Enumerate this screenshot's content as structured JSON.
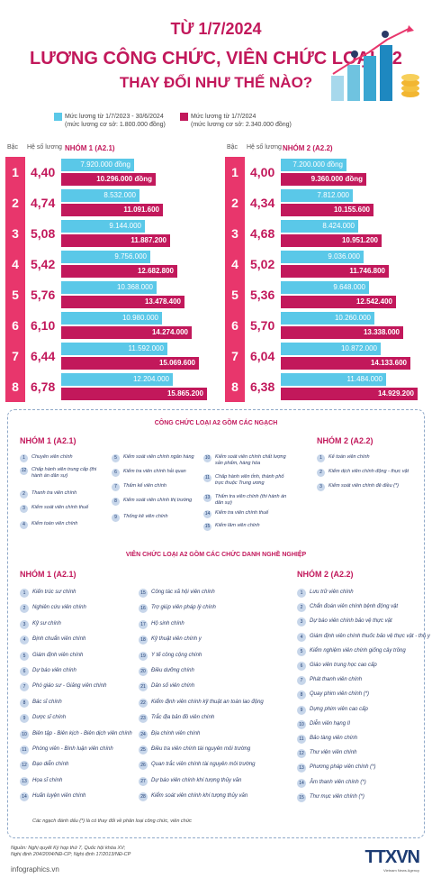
{
  "header": {
    "date": "TỪ 1/7/2024",
    "title": "LƯƠNG CÔNG CHỨC, VIÊN CHỨC LOẠI A2",
    "subtitle": "THAY ĐỔI NHƯ THẾ NÀO?"
  },
  "legend": {
    "old_line1": "Mức lương từ 1/7/2023 - 30/6/2024",
    "old_line2": "(mức lương cơ sở: 1.800.000 đồng)",
    "new_line1": "Mức lương từ 1/7/2024",
    "new_line2": "(mức lương cơ sở: 2.340.000 đồng)"
  },
  "colors": {
    "old": "#5ac8e8",
    "new": "#c2185b",
    "rank": "#e8366c"
  },
  "groups": [
    {
      "col_rank": "Bậc",
      "col_coef": "Hệ số lương",
      "title": "NHÓM 1 (A2.1)",
      "rows": [
        {
          "rank": "1",
          "coef": "4,40",
          "old": "7.920.000 đồng",
          "new": "10.296.000 đồng",
          "old_v": 7920000,
          "new_v": 10296000
        },
        {
          "rank": "2",
          "coef": "4,74",
          "old": "8.532.000",
          "new": "11.091.600",
          "old_v": 8532000,
          "new_v": 11091600
        },
        {
          "rank": "3",
          "coef": "5,08",
          "old": "9.144.000",
          "new": "11.887.200",
          "old_v": 9144000,
          "new_v": 11887200
        },
        {
          "rank": "4",
          "coef": "5,42",
          "old": "9.756.000",
          "new": "12.682.800",
          "old_v": 9756000,
          "new_v": 12682800
        },
        {
          "rank": "5",
          "coef": "5,76",
          "old": "10.368.000",
          "new": "13.478.400",
          "old_v": 10368000,
          "new_v": 13478400
        },
        {
          "rank": "6",
          "coef": "6,10",
          "old": "10.980.000",
          "new": "14.274.000",
          "old_v": 10980000,
          "new_v": 14274000
        },
        {
          "rank": "7",
          "coef": "6,44",
          "old": "11.592.000",
          "new": "15.069.600",
          "old_v": 11592000,
          "new_v": 15069600
        },
        {
          "rank": "8",
          "coef": "6,78",
          "old": "12.204.000",
          "new": "15.865.200",
          "old_v": 12204000,
          "new_v": 15865200
        }
      ]
    },
    {
      "col_rank": "Bậc",
      "col_coef": "Hệ số lương",
      "title": "NHÓM 2 (A2.2)",
      "rows": [
        {
          "rank": "1",
          "coef": "4,00",
          "old": "7.200.000 đồng",
          "new": "9.360.000 đồng",
          "old_v": 7200000,
          "new_v": 9360000
        },
        {
          "rank": "2",
          "coef": "4,34",
          "old": "7.812.000",
          "new": "10.155.600",
          "old_v": 7812000,
          "new_v": 10155600
        },
        {
          "rank": "3",
          "coef": "4,68",
          "old": "8.424.000",
          "new": "10.951.200",
          "old_v": 8424000,
          "new_v": 10951200
        },
        {
          "rank": "4",
          "coef": "5,02",
          "old": "9.036.000",
          "new": "11.746.800",
          "old_v": 9036000,
          "new_v": 11746800
        },
        {
          "rank": "5",
          "coef": "5,36",
          "old": "9.648.000",
          "new": "12.542.400",
          "old_v": 9648000,
          "new_v": 12542400
        },
        {
          "rank": "6",
          "coef": "5,70",
          "old": "10.260.000",
          "new": "13.338.000",
          "old_v": 10260000,
          "new_v": 13338000
        },
        {
          "rank": "7",
          "coef": "6,04",
          "old": "10.872.000",
          "new": "14.133.600",
          "old_v": 10872000,
          "new_v": 14133600
        },
        {
          "rank": "8",
          "coef": "6,38",
          "old": "11.484.000",
          "new": "14.929.200",
          "old_v": 11484000,
          "new_v": 14929200
        }
      ]
    }
  ],
  "civil": {
    "title": "CÔNG CHỨC LOẠI A2 GỒM CÁC NGẠCH",
    "g1_title": "NHÓM 1 (A2.1)",
    "g2_title": "NHÓM 2 (A2.2)",
    "g1": [
      "Chuyên viên chính",
      "Chấp hành viên trung cấp (thi hành án dân sự)",
      "Thanh tra viên chính",
      "Kiểm soát viên chính thuế",
      "Kiểm toán viên chính",
      "Kiểm soát viên chính ngân hàng",
      "Kiểm tra viên chính hải quan",
      "Thẩm kế viên chính",
      "Kiểm soát viên chính thị trường",
      "Thống kê viên chính",
      "Kiểm soát viên chính chất lượng sản phẩm, hàng hóa",
      "Chấp hành viên tỉnh, thành phố trực thuộc Trung ương",
      "Thẩm tra viên chính (thi hành án dân sự)",
      "Kiểm tra viên chính thuế",
      "Kiểm lâm viên chính"
    ],
    "g2": [
      "Kế toán viên chính",
      "Kiểm dịch viên chính động - thực vật",
      "Kiểm soát viên chính đê điều (*)"
    ]
  },
  "public": {
    "title": "VIÊN CHỨC LOẠI A2 GỒM CÁC CHỨC DANH NGHỀ NGHIỆP",
    "g1_title": "NHÓM 1 (A2.1)",
    "g2_title": "NHÓM 2 (A2.2)",
    "g1a": [
      "Kiến trúc sư chính",
      "Nghiên cứu viên chính",
      "Kỹ sư chính",
      "Định chuẩn viên chính",
      "Giám định viên chính",
      "Dự báo viên chính",
      "Phó giáo sư - Giảng viên chính",
      "Bác sĩ chính",
      "Dược sĩ chính",
      "Biên tập - Biên kịch - Biên dịch viên chính",
      "Phóng viên - Bình luận viên chính",
      "Đạo diễn chính",
      "Họa sĩ chính",
      "Huấn luyện viên chính"
    ],
    "g1b": [
      "Công tác xã hội viên chính",
      "Trợ giúp viên pháp lý chính",
      "Hộ sinh chính",
      "Kỹ thuật viên chính y",
      "Y tế công cộng chính",
      "Điều dưỡng chính",
      "Dân số viên chính",
      "Kiểm định viên chính kỹ thuật an toàn lao động",
      "Trắc địa bản đồ viên chính",
      "Địa chính viên chính",
      "Điều tra viên chính tài nguyên môi trường",
      "Quan trắc viên chính tài nguyên môi trường",
      "Dự báo viên chính khí tượng thủy văn",
      "Kiểm soát viên chính khí tượng thủy văn"
    ],
    "g2": [
      "Lưu trữ viên chính",
      "Chẩn đoán viên chính bệnh động vật",
      "Dự báo viên chính bảo vệ thực vật",
      "Giám định viên chính thuốc bảo vệ thực vật - thú y",
      "Kiểm nghiệm viên chính giống cây trồng",
      "Giáo viên trung học cao cấp",
      "Phát thanh viên chính",
      "Quay phim viên chính (*)",
      "Dựng phim viên cao cấp",
      "Diễn viên hạng II",
      "Bảo tàng viên chính",
      "Thư viện viên chính",
      "Phương pháp viên chính (*)",
      "Âm thanh viên chính (*)",
      "Thư mục viên chính (*)"
    ]
  },
  "note": "Các ngạch đánh dấu (*) là có thay đổi về phân loại công chức, viên chức",
  "source_line1": "Nguồn: Nghị quyết Kỳ họp thứ 7, Quốc hội khóa XV;",
  "source_line2": "Nghị định 204/2004/NĐ-CP; Nghị định 17/2013/NĐ-CP",
  "footer": "infographics.vn",
  "logo": {
    "text": "TTXVN",
    "sub": "Vietnam News Agency"
  }
}
